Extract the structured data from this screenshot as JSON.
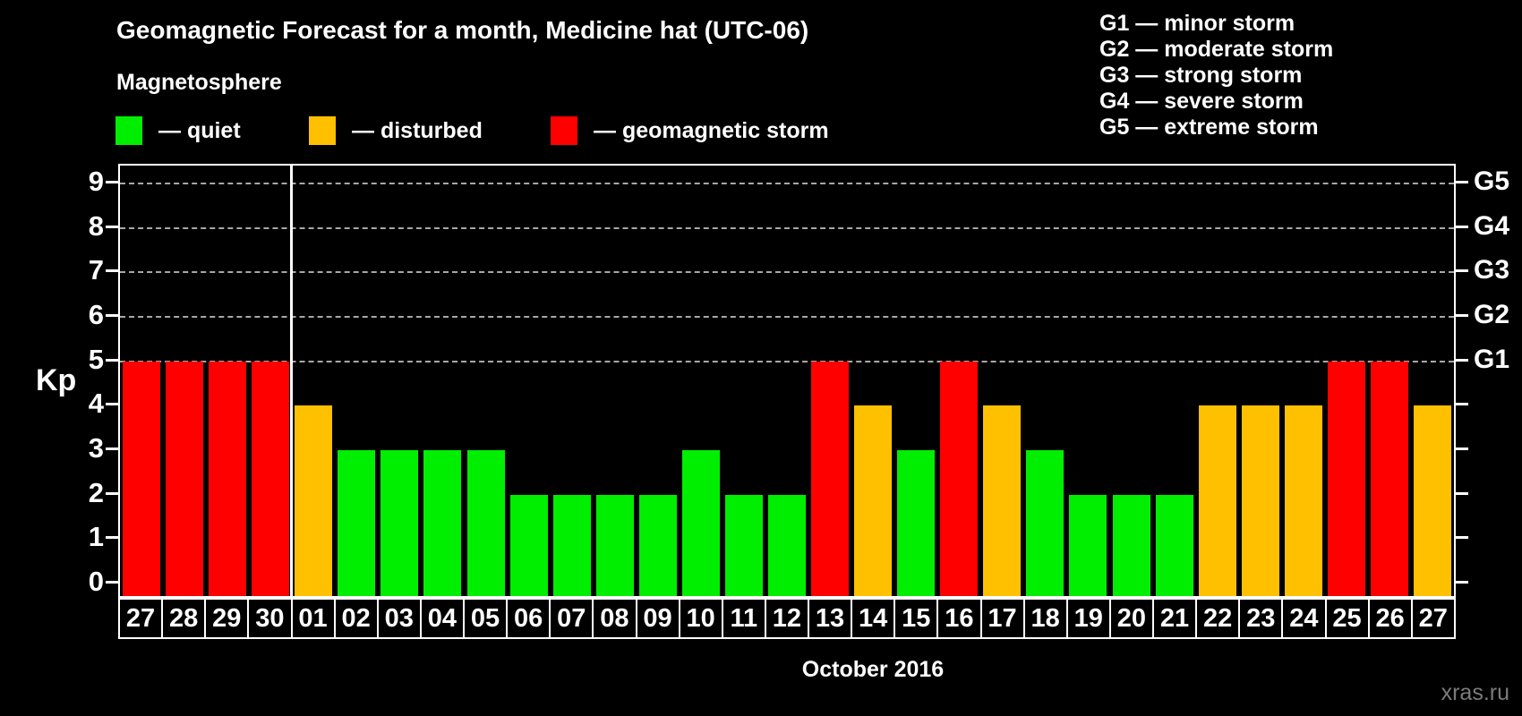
{
  "title": "Geomagnetic Forecast for a month, Medicine hat (UTC-06)",
  "subtitle": "Magnetosphere",
  "separator": "—",
  "legend": {
    "items": [
      {
        "condition": "quiet",
        "label": "quiet"
      },
      {
        "condition": "disturbed",
        "label": "disturbed"
      },
      {
        "condition": "storm",
        "label": "geomagnetic storm"
      }
    ]
  },
  "storm_scale_legend": [
    {
      "code": "G1",
      "label": "minor storm"
    },
    {
      "code": "G2",
      "label": "moderate storm"
    },
    {
      "code": "G3",
      "label": "strong storm"
    },
    {
      "code": "G4",
      "label": "severe storm"
    },
    {
      "code": "G5",
      "label": "extreme storm"
    }
  ],
  "watermark": "xras.ru",
  "colors": {
    "quiet": "#00EE00",
    "disturbed": "#FFC000",
    "storm": "#FF0000",
    "background": "#000000",
    "text": "#FFFFFF",
    "grid": "#A8A8A8",
    "watermark": "#7B7B7B"
  },
  "chart_data": {
    "type": "bar",
    "title": "Geomagnetic Forecast for a month, Medicine hat (UTC-06)",
    "ylabel": "Kp",
    "xlabel": "October 2016",
    "ylim": [
      0,
      9
    ],
    "yticks": [
      0,
      1,
      2,
      3,
      4,
      5,
      6,
      7,
      8,
      9
    ],
    "grid": "horizontal dashed lines at Kp 5 to 9 only",
    "legend_position": "top",
    "right_axis_labels": [
      {
        "kp": 5,
        "code": "G1"
      },
      {
        "kp": 6,
        "code": "G2"
      },
      {
        "kp": 7,
        "code": "G3"
      },
      {
        "kp": 8,
        "code": "G4"
      },
      {
        "kp": 9,
        "code": "G5"
      }
    ],
    "categories": [
      "27",
      "28",
      "29",
      "30",
      "01",
      "02",
      "03",
      "04",
      "05",
      "06",
      "07",
      "08",
      "09",
      "10",
      "11",
      "12",
      "13",
      "14",
      "15",
      "16",
      "17",
      "18",
      "19",
      "20",
      "21",
      "22",
      "23",
      "24",
      "25",
      "26",
      "27"
    ],
    "values": [
      5,
      5,
      5,
      5,
      4,
      3,
      3,
      3,
      3,
      2,
      2,
      2,
      2,
      3,
      2,
      2,
      5,
      4,
      3,
      5,
      4,
      3,
      2,
      2,
      2,
      4,
      4,
      4,
      5,
      5,
      4
    ],
    "conditions": [
      "storm",
      "storm",
      "storm",
      "storm",
      "disturbed",
      "quiet",
      "quiet",
      "quiet",
      "quiet",
      "quiet",
      "quiet",
      "quiet",
      "quiet",
      "quiet",
      "quiet",
      "quiet",
      "storm",
      "disturbed",
      "quiet",
      "storm",
      "disturbed",
      "quiet",
      "quiet",
      "quiet",
      "quiet",
      "disturbed",
      "disturbed",
      "disturbed",
      "storm",
      "storm",
      "disturbed"
    ],
    "month_boundary_after_index": 3
  }
}
